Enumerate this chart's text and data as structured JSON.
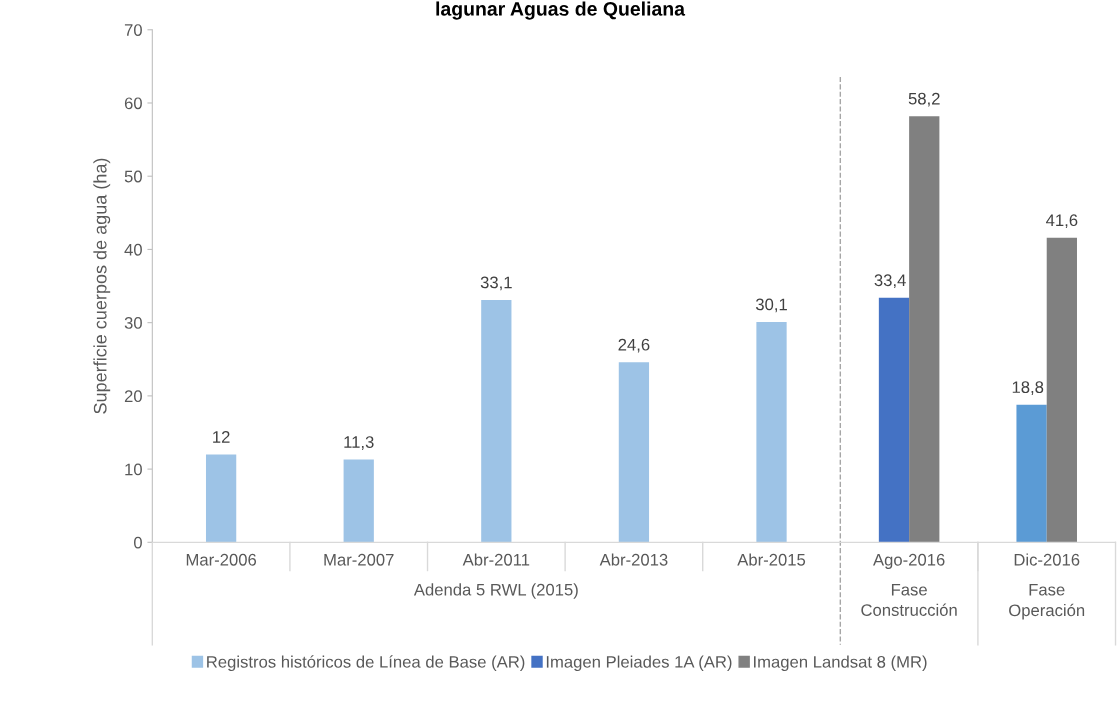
{
  "chart_data": {
    "type": "bar",
    "title": "lagunar Aguas de Queliana",
    "ylabel": "Superficie cuerpos de agua (ha)",
    "categories": [
      "Mar-2006",
      "Mar-2007",
      "Abr-2011",
      "Abr-2013",
      "Abr-2015",
      "Ago-2016",
      "Dic-2016"
    ],
    "series": [
      {
        "name": "Registros históricos de Línea de Base (AR)",
        "color": "#9dc3e6",
        "values": [
          12,
          11.3,
          33.1,
          24.6,
          30.1,
          null,
          null
        ],
        "value_labels": [
          "12",
          "11,3",
          "33,1",
          "24,6",
          "30,1",
          null,
          null
        ]
      },
      {
        "name": "Imagen Pleiades 1A (AR)",
        "color": "#4472c4",
        "colors": [
          null,
          null,
          null,
          null,
          null,
          "#4472c4",
          "#5b9bd5"
        ],
        "values": [
          null,
          null,
          null,
          null,
          null,
          33.4,
          18.8
        ],
        "value_labels": [
          null,
          null,
          null,
          null,
          null,
          "33,4",
          "18,8"
        ]
      },
      {
        "name": "Imagen Landsat 8 (MR)",
        "color": "#808080",
        "values": [
          null,
          null,
          null,
          null,
          null,
          58.2,
          41.6
        ],
        "value_labels": [
          null,
          null,
          null,
          null,
          null,
          "58,2",
          "41,6"
        ]
      }
    ],
    "ylim": [
      0,
      70
    ],
    "yticks": [
      0,
      10,
      20,
      30,
      40,
      50,
      60,
      70
    ],
    "grid": false,
    "legend": "bottom",
    "annotations": [
      "Adenda 5 RWL (2015)",
      "Fase\nConstrucción",
      "Fase\nOperación"
    ]
  }
}
